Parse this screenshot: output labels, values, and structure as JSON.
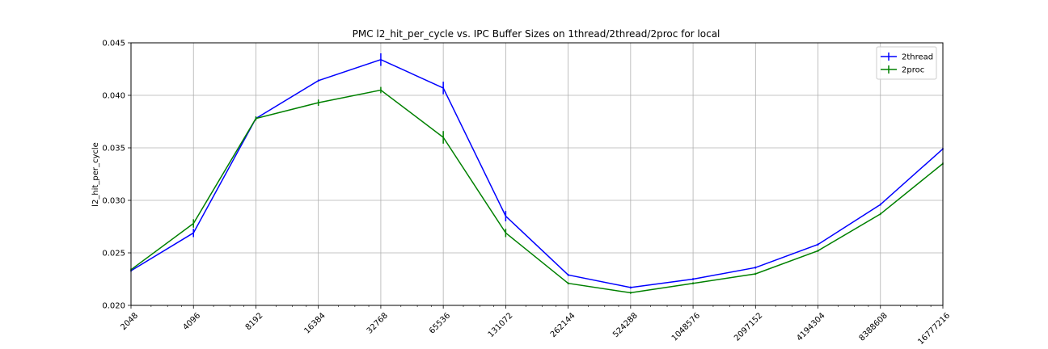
{
  "chart_data": {
    "type": "line",
    "title": "PMC l2_hit_per_cycle vs. IPC Buffer Sizes on 1thread/2thread/2proc for local",
    "xlabel": "",
    "ylabel": "l2_hit_per_cycle",
    "x_scale": "log2",
    "x": [
      2048,
      4096,
      8192,
      16384,
      32768,
      65536,
      131072,
      262144,
      524288,
      1048576,
      2097152,
      4194304,
      8388608,
      16777216
    ],
    "x_tick_labels": [
      "2048",
      "4096",
      "8192",
      "16384",
      "32768",
      "65536",
      "131072",
      "262144",
      "524288",
      "1048576",
      "2097152",
      "4194304",
      "8388608",
      "16777216"
    ],
    "ylim": [
      0.02,
      0.045
    ],
    "y_ticks": [
      0.02,
      0.025,
      0.03,
      0.035,
      0.04,
      0.045
    ],
    "y_tick_labels": [
      "0.020",
      "0.025",
      "0.030",
      "0.035",
      "0.040",
      "0.045"
    ],
    "grid": true,
    "legend_position": "top-right",
    "series": [
      {
        "name": "2thread",
        "color": "#0000ff",
        "values": [
          0.0233,
          0.0269,
          0.0378,
          0.0414,
          0.0434,
          0.0407,
          0.0285,
          0.0229,
          0.0217,
          0.0225,
          0.0236,
          0.0258,
          0.0296,
          0.0349
        ],
        "errors": [
          0.0001,
          0.0004,
          0.0001,
          0.0001,
          0.0006,
          0.0006,
          0.0005,
          0.0001,
          0.0001,
          0.0001,
          0.0001,
          0.0001,
          0.0001,
          0.0001
        ]
      },
      {
        "name": "2proc",
        "color": "#008000",
        "values": [
          0.0234,
          0.0278,
          0.0378,
          0.0393,
          0.0405,
          0.036,
          0.0269,
          0.0221,
          0.0212,
          0.0221,
          0.023,
          0.0252,
          0.0287,
          0.0335
        ],
        "errors": [
          0.0001,
          0.0004,
          0.0002,
          0.0003,
          0.0003,
          0.0006,
          0.0004,
          0.0001,
          0.0001,
          0.0001,
          0.0001,
          0.0001,
          0.0001,
          0.0001
        ]
      }
    ]
  }
}
